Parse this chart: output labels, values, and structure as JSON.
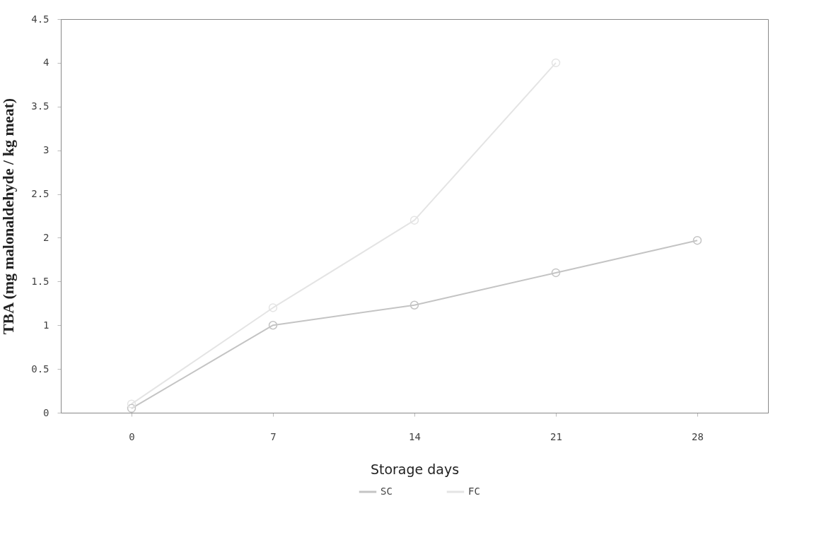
{
  "chart_data": {
    "type": "line",
    "xlabel": "Storage days",
    "ylabel": "TBA (mg malonaldehyde / kg meat)",
    "categories": [
      "0",
      "7",
      "14",
      "21",
      "28"
    ],
    "series": [
      {
        "name": "SC",
        "color": "#c4c4c4",
        "values": [
          0.05,
          1.0,
          1.23,
          1.6,
          1.97
        ]
      },
      {
        "name": "FC",
        "color": "#e4e4e4",
        "values": [
          0.1,
          1.2,
          2.2,
          4.0,
          null
        ]
      }
    ],
    "ylim": [
      0,
      4.5
    ],
    "yticks": [
      0,
      0.5,
      1,
      1.5,
      2,
      2.5,
      3,
      3.5,
      4,
      4.5
    ],
    "grid": false,
    "legend": "bottom",
    "marker": "circle"
  }
}
